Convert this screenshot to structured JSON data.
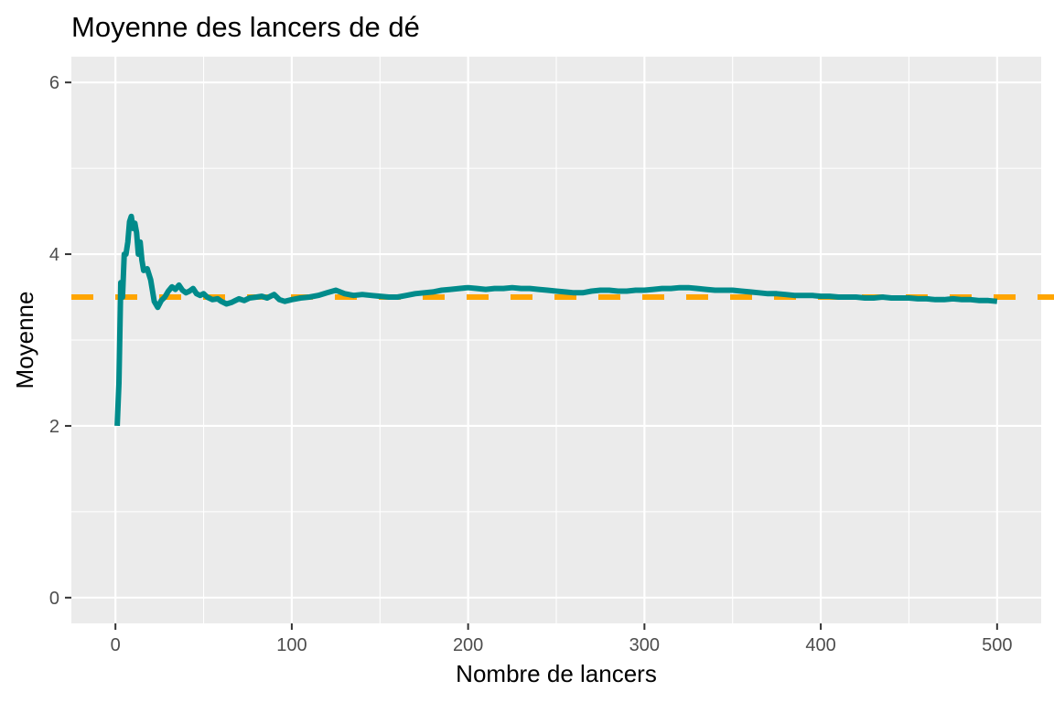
{
  "chart_data": {
    "type": "line",
    "title": "Moyenne des lancers de dé",
    "xlabel": "Nombre de lancers",
    "ylabel": "Moyenne",
    "xlim": [
      -25,
      525
    ],
    "ylim": [
      -0.3,
      6.3
    ],
    "x_ticks": [
      0,
      100,
      200,
      300,
      400,
      500
    ],
    "y_ticks": [
      0,
      2,
      4,
      6
    ],
    "x_tick_labels": [
      "0",
      "100",
      "200",
      "300",
      "400",
      "500"
    ],
    "y_tick_labels": [
      "0",
      "2",
      "4",
      "6"
    ],
    "grid": true,
    "legend": "none",
    "reference_line": {
      "y": 3.5,
      "style": "dashed",
      "color": "#FFA500"
    },
    "series": [
      {
        "color": "#008B8B",
        "x": [
          1,
          2,
          3,
          4,
          5,
          6,
          7,
          8,
          9,
          10,
          11,
          12,
          13,
          14,
          15,
          16,
          17,
          18,
          20,
          22,
          24,
          26,
          28,
          30,
          32,
          34,
          36,
          38,
          40,
          42,
          44,
          46,
          48,
          50,
          52,
          55,
          58,
          60,
          63,
          66,
          70,
          73,
          76,
          80,
          83,
          86,
          90,
          93,
          96,
          100,
          105,
          110,
          115,
          120,
          125,
          130,
          135,
          140,
          145,
          150,
          155,
          160,
          165,
          170,
          175,
          180,
          185,
          190,
          195,
          200,
          205,
          210,
          215,
          220,
          225,
          230,
          235,
          240,
          245,
          250,
          255,
          260,
          265,
          270,
          275,
          280,
          285,
          290,
          295,
          300,
          305,
          310,
          315,
          320,
          325,
          330,
          335,
          340,
          345,
          350,
          355,
          360,
          365,
          370,
          375,
          380,
          385,
          390,
          395,
          400,
          405,
          410,
          415,
          420,
          425,
          430,
          435,
          440,
          445,
          450,
          455,
          460,
          465,
          470,
          475,
          480,
          485,
          490,
          495,
          500
        ],
        "y": [
          2.0,
          2.5,
          3.67,
          3.5,
          4.0,
          4.0,
          4.14,
          4.38,
          4.44,
          4.3,
          4.36,
          4.25,
          4.0,
          4.14,
          3.93,
          3.81,
          3.82,
          3.83,
          3.7,
          3.45,
          3.38,
          3.46,
          3.5,
          3.57,
          3.62,
          3.59,
          3.64,
          3.58,
          3.55,
          3.57,
          3.6,
          3.54,
          3.52,
          3.54,
          3.5,
          3.47,
          3.48,
          3.45,
          3.42,
          3.44,
          3.48,
          3.46,
          3.49,
          3.5,
          3.51,
          3.49,
          3.53,
          3.47,
          3.45,
          3.47,
          3.49,
          3.5,
          3.52,
          3.55,
          3.58,
          3.54,
          3.52,
          3.53,
          3.52,
          3.51,
          3.5,
          3.5,
          3.52,
          3.54,
          3.55,
          3.56,
          3.58,
          3.59,
          3.6,
          3.61,
          3.6,
          3.59,
          3.6,
          3.6,
          3.61,
          3.6,
          3.6,
          3.59,
          3.58,
          3.57,
          3.56,
          3.55,
          3.55,
          3.57,
          3.58,
          3.58,
          3.57,
          3.57,
          3.58,
          3.58,
          3.59,
          3.6,
          3.6,
          3.61,
          3.61,
          3.6,
          3.59,
          3.58,
          3.58,
          3.58,
          3.57,
          3.56,
          3.55,
          3.54,
          3.54,
          3.53,
          3.52,
          3.52,
          3.52,
          3.51,
          3.51,
          3.5,
          3.5,
          3.5,
          3.49,
          3.49,
          3.5,
          3.49,
          3.49,
          3.49,
          3.48,
          3.48,
          3.47,
          3.47,
          3.48,
          3.47,
          3.47,
          3.46,
          3.46,
          3.45
        ]
      }
    ]
  },
  "colors": {
    "panel_background": "#EBEBEB",
    "grid_major": "#FFFFFF",
    "series_line": "#008B8B",
    "reference_line": "#FFA500"
  }
}
